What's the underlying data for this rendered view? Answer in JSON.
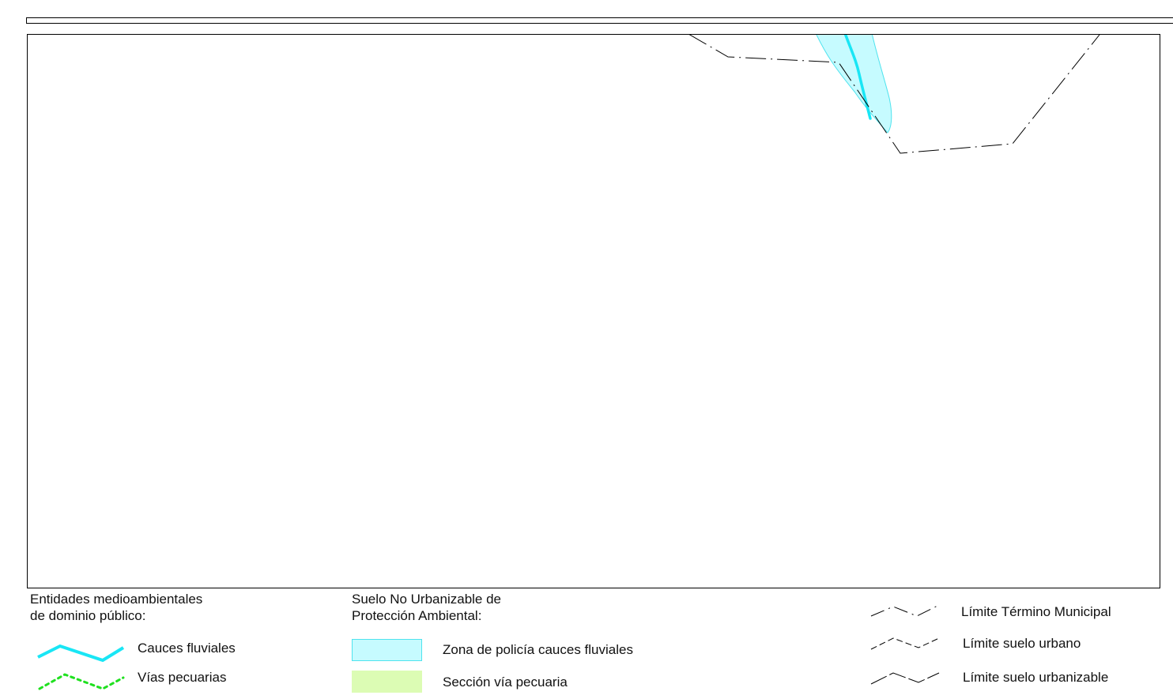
{
  "legend": {
    "entidades": {
      "heading_line1": "Entidades medioambientales",
      "heading_line2": "de dominio público:",
      "items": [
        {
          "label": "Cauces fluviales",
          "color": "#19e6f5",
          "icon": "cyan-solid-line"
        },
        {
          "label": "Vías pecuarias",
          "color": "#1fe01f",
          "icon": "green-dotted-line"
        }
      ]
    },
    "suelo": {
      "heading_line1": "Suelo No Urbanizable de",
      "heading_line2": "Protección Ambiental:",
      "items": [
        {
          "label": "Zona de policía cauces fluviales",
          "fill": "#c6fbff",
          "stroke": "#4fe3ee",
          "icon": "cyan-fill-swatch"
        },
        {
          "label": "Sección vía pecuaria",
          "fill": "#dcfcb4",
          "stroke": "#dcfcb4",
          "icon": "green-fill-swatch"
        }
      ]
    },
    "limites": {
      "items": [
        {
          "label": "Límite Término Municipal",
          "icon": "dash-dot-line"
        },
        {
          "label": "Límite suelo urbano",
          "icon": "dashed-line"
        },
        {
          "label": "Límite suelo urbanizable",
          "icon": "long-dash-line"
        }
      ]
    }
  },
  "colors": {
    "river": "#19e6f5",
    "police_zone_fill": "#c6fbff",
    "police_zone_stroke": "#4fe3ee",
    "boundary": "#000000"
  }
}
